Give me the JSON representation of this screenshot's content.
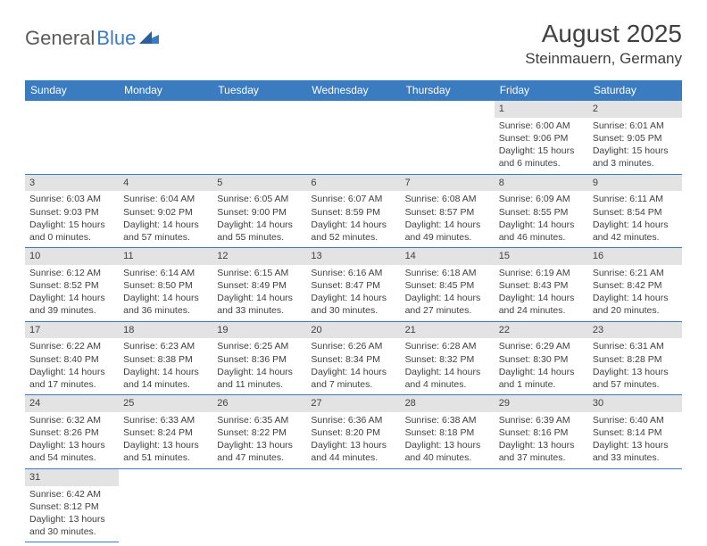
{
  "logo": {
    "text1": "General",
    "text2": "Blue"
  },
  "title": "August 2025",
  "location": "Steinmauern, Germany",
  "weekdays": [
    "Sunday",
    "Monday",
    "Tuesday",
    "Wednesday",
    "Thursday",
    "Friday",
    "Saturday"
  ],
  "colors": {
    "header_bg": "#3b7bbf",
    "header_text": "#ffffff",
    "daynum_bg": "#e3e3e3",
    "border": "#3b7bbf",
    "text": "#404040",
    "logo_gray": "#5a5a5a",
    "logo_blue": "#3b7bbf"
  },
  "weeks": [
    [
      null,
      null,
      null,
      null,
      null,
      {
        "n": "1",
        "sr": "Sunrise: 6:00 AM",
        "ss": "Sunset: 9:06 PM",
        "dl": "Daylight: 15 hours and 6 minutes."
      },
      {
        "n": "2",
        "sr": "Sunrise: 6:01 AM",
        "ss": "Sunset: 9:05 PM",
        "dl": "Daylight: 15 hours and 3 minutes."
      }
    ],
    [
      {
        "n": "3",
        "sr": "Sunrise: 6:03 AM",
        "ss": "Sunset: 9:03 PM",
        "dl": "Daylight: 15 hours and 0 minutes."
      },
      {
        "n": "4",
        "sr": "Sunrise: 6:04 AM",
        "ss": "Sunset: 9:02 PM",
        "dl": "Daylight: 14 hours and 57 minutes."
      },
      {
        "n": "5",
        "sr": "Sunrise: 6:05 AM",
        "ss": "Sunset: 9:00 PM",
        "dl": "Daylight: 14 hours and 55 minutes."
      },
      {
        "n": "6",
        "sr": "Sunrise: 6:07 AM",
        "ss": "Sunset: 8:59 PM",
        "dl": "Daylight: 14 hours and 52 minutes."
      },
      {
        "n": "7",
        "sr": "Sunrise: 6:08 AM",
        "ss": "Sunset: 8:57 PM",
        "dl": "Daylight: 14 hours and 49 minutes."
      },
      {
        "n": "8",
        "sr": "Sunrise: 6:09 AM",
        "ss": "Sunset: 8:55 PM",
        "dl": "Daylight: 14 hours and 46 minutes."
      },
      {
        "n": "9",
        "sr": "Sunrise: 6:11 AM",
        "ss": "Sunset: 8:54 PM",
        "dl": "Daylight: 14 hours and 42 minutes."
      }
    ],
    [
      {
        "n": "10",
        "sr": "Sunrise: 6:12 AM",
        "ss": "Sunset: 8:52 PM",
        "dl": "Daylight: 14 hours and 39 minutes."
      },
      {
        "n": "11",
        "sr": "Sunrise: 6:14 AM",
        "ss": "Sunset: 8:50 PM",
        "dl": "Daylight: 14 hours and 36 minutes."
      },
      {
        "n": "12",
        "sr": "Sunrise: 6:15 AM",
        "ss": "Sunset: 8:49 PM",
        "dl": "Daylight: 14 hours and 33 minutes."
      },
      {
        "n": "13",
        "sr": "Sunrise: 6:16 AM",
        "ss": "Sunset: 8:47 PM",
        "dl": "Daylight: 14 hours and 30 minutes."
      },
      {
        "n": "14",
        "sr": "Sunrise: 6:18 AM",
        "ss": "Sunset: 8:45 PM",
        "dl": "Daylight: 14 hours and 27 minutes."
      },
      {
        "n": "15",
        "sr": "Sunrise: 6:19 AM",
        "ss": "Sunset: 8:43 PM",
        "dl": "Daylight: 14 hours and 24 minutes."
      },
      {
        "n": "16",
        "sr": "Sunrise: 6:21 AM",
        "ss": "Sunset: 8:42 PM",
        "dl": "Daylight: 14 hours and 20 minutes."
      }
    ],
    [
      {
        "n": "17",
        "sr": "Sunrise: 6:22 AM",
        "ss": "Sunset: 8:40 PM",
        "dl": "Daylight: 14 hours and 17 minutes."
      },
      {
        "n": "18",
        "sr": "Sunrise: 6:23 AM",
        "ss": "Sunset: 8:38 PM",
        "dl": "Daylight: 14 hours and 14 minutes."
      },
      {
        "n": "19",
        "sr": "Sunrise: 6:25 AM",
        "ss": "Sunset: 8:36 PM",
        "dl": "Daylight: 14 hours and 11 minutes."
      },
      {
        "n": "20",
        "sr": "Sunrise: 6:26 AM",
        "ss": "Sunset: 8:34 PM",
        "dl": "Daylight: 14 hours and 7 minutes."
      },
      {
        "n": "21",
        "sr": "Sunrise: 6:28 AM",
        "ss": "Sunset: 8:32 PM",
        "dl": "Daylight: 14 hours and 4 minutes."
      },
      {
        "n": "22",
        "sr": "Sunrise: 6:29 AM",
        "ss": "Sunset: 8:30 PM",
        "dl": "Daylight: 14 hours and 1 minute."
      },
      {
        "n": "23",
        "sr": "Sunrise: 6:31 AM",
        "ss": "Sunset: 8:28 PM",
        "dl": "Daylight: 13 hours and 57 minutes."
      }
    ],
    [
      {
        "n": "24",
        "sr": "Sunrise: 6:32 AM",
        "ss": "Sunset: 8:26 PM",
        "dl": "Daylight: 13 hours and 54 minutes."
      },
      {
        "n": "25",
        "sr": "Sunrise: 6:33 AM",
        "ss": "Sunset: 8:24 PM",
        "dl": "Daylight: 13 hours and 51 minutes."
      },
      {
        "n": "26",
        "sr": "Sunrise: 6:35 AM",
        "ss": "Sunset: 8:22 PM",
        "dl": "Daylight: 13 hours and 47 minutes."
      },
      {
        "n": "27",
        "sr": "Sunrise: 6:36 AM",
        "ss": "Sunset: 8:20 PM",
        "dl": "Daylight: 13 hours and 44 minutes."
      },
      {
        "n": "28",
        "sr": "Sunrise: 6:38 AM",
        "ss": "Sunset: 8:18 PM",
        "dl": "Daylight: 13 hours and 40 minutes."
      },
      {
        "n": "29",
        "sr": "Sunrise: 6:39 AM",
        "ss": "Sunset: 8:16 PM",
        "dl": "Daylight: 13 hours and 37 minutes."
      },
      {
        "n": "30",
        "sr": "Sunrise: 6:40 AM",
        "ss": "Sunset: 8:14 PM",
        "dl": "Daylight: 13 hours and 33 minutes."
      }
    ],
    [
      {
        "n": "31",
        "sr": "Sunrise: 6:42 AM",
        "ss": "Sunset: 8:12 PM",
        "dl": "Daylight: 13 hours and 30 minutes."
      },
      null,
      null,
      null,
      null,
      null,
      null
    ]
  ]
}
